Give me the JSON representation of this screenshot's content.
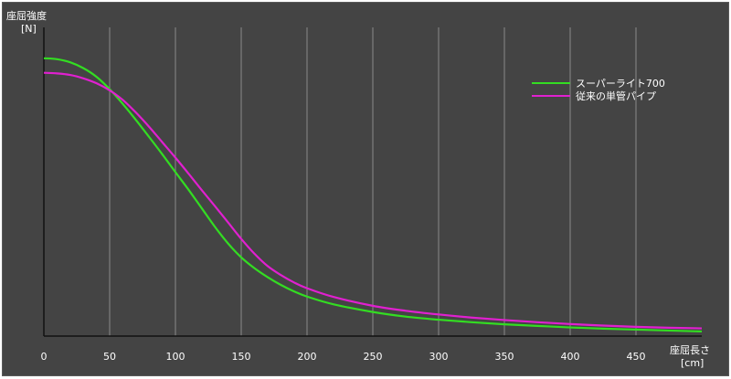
{
  "chart_data": {
    "type": "line",
    "title": "",
    "ylabel": "座屈強度",
    "ylabel_unit": "[N]",
    "xlabel": "座屈長さ",
    "xlabel_unit": "[cm]",
    "xlim": [
      0,
      500
    ],
    "ylim": [
      0,
      1
    ],
    "x_ticks": [
      0,
      50,
      100,
      150,
      200,
      250,
      300,
      350,
      400,
      450
    ],
    "grid": "vertical",
    "legend_position": "top-right",
    "series": [
      {
        "name": "スーパーライト700",
        "color": "#33dd22",
        "points": [
          [
            0,
            0.9
          ],
          [
            10,
            0.897
          ],
          [
            20,
            0.887
          ],
          [
            30,
            0.868
          ],
          [
            40,
            0.84
          ],
          [
            50,
            0.8
          ],
          [
            60,
            0.752
          ],
          [
            70,
            0.7
          ],
          [
            80,
            0.645
          ],
          [
            90,
            0.589
          ],
          [
            100,
            0.531
          ],
          [
            110,
            0.474
          ],
          [
            120,
            0.414
          ],
          [
            130,
            0.354
          ],
          [
            140,
            0.3
          ],
          [
            150,
            0.255
          ],
          [
            160,
            0.22
          ],
          [
            170,
            0.191
          ],
          [
            180,
            0.166
          ],
          [
            190,
            0.145
          ],
          [
            200,
            0.128
          ],
          [
            220,
            0.103
          ],
          [
            250,
            0.078
          ],
          [
            275,
            0.063
          ],
          [
            300,
            0.053
          ],
          [
            325,
            0.045
          ],
          [
            350,
            0.038
          ],
          [
            375,
            0.033
          ],
          [
            400,
            0.028
          ],
          [
            425,
            0.024
          ],
          [
            450,
            0.021
          ],
          [
            475,
            0.018
          ],
          [
            500,
            0.015
          ]
        ]
      },
      {
        "name": "従来の単管パイプ",
        "color": "#e020d0",
        "points": [
          [
            0,
            0.853
          ],
          [
            10,
            0.851
          ],
          [
            20,
            0.846
          ],
          [
            30,
            0.835
          ],
          [
            40,
            0.819
          ],
          [
            50,
            0.796
          ],
          [
            60,
            0.765
          ],
          [
            70,
            0.724
          ],
          [
            80,
            0.678
          ],
          [
            90,
            0.628
          ],
          [
            100,
            0.578
          ],
          [
            110,
            0.526
          ],
          [
            120,
            0.473
          ],
          [
            130,
            0.421
          ],
          [
            140,
            0.368
          ],
          [
            150,
            0.315
          ],
          [
            160,
            0.267
          ],
          [
            170,
            0.227
          ],
          [
            180,
            0.198
          ],
          [
            190,
            0.174
          ],
          [
            200,
            0.155
          ],
          [
            220,
            0.127
          ],
          [
            250,
            0.098
          ],
          [
            275,
            0.082
          ],
          [
            300,
            0.07
          ],
          [
            325,
            0.06
          ],
          [
            350,
            0.052
          ],
          [
            375,
            0.045
          ],
          [
            400,
            0.039
          ],
          [
            425,
            0.034
          ],
          [
            450,
            0.03
          ],
          [
            475,
            0.027
          ],
          [
            500,
            0.025
          ]
        ]
      }
    ]
  }
}
